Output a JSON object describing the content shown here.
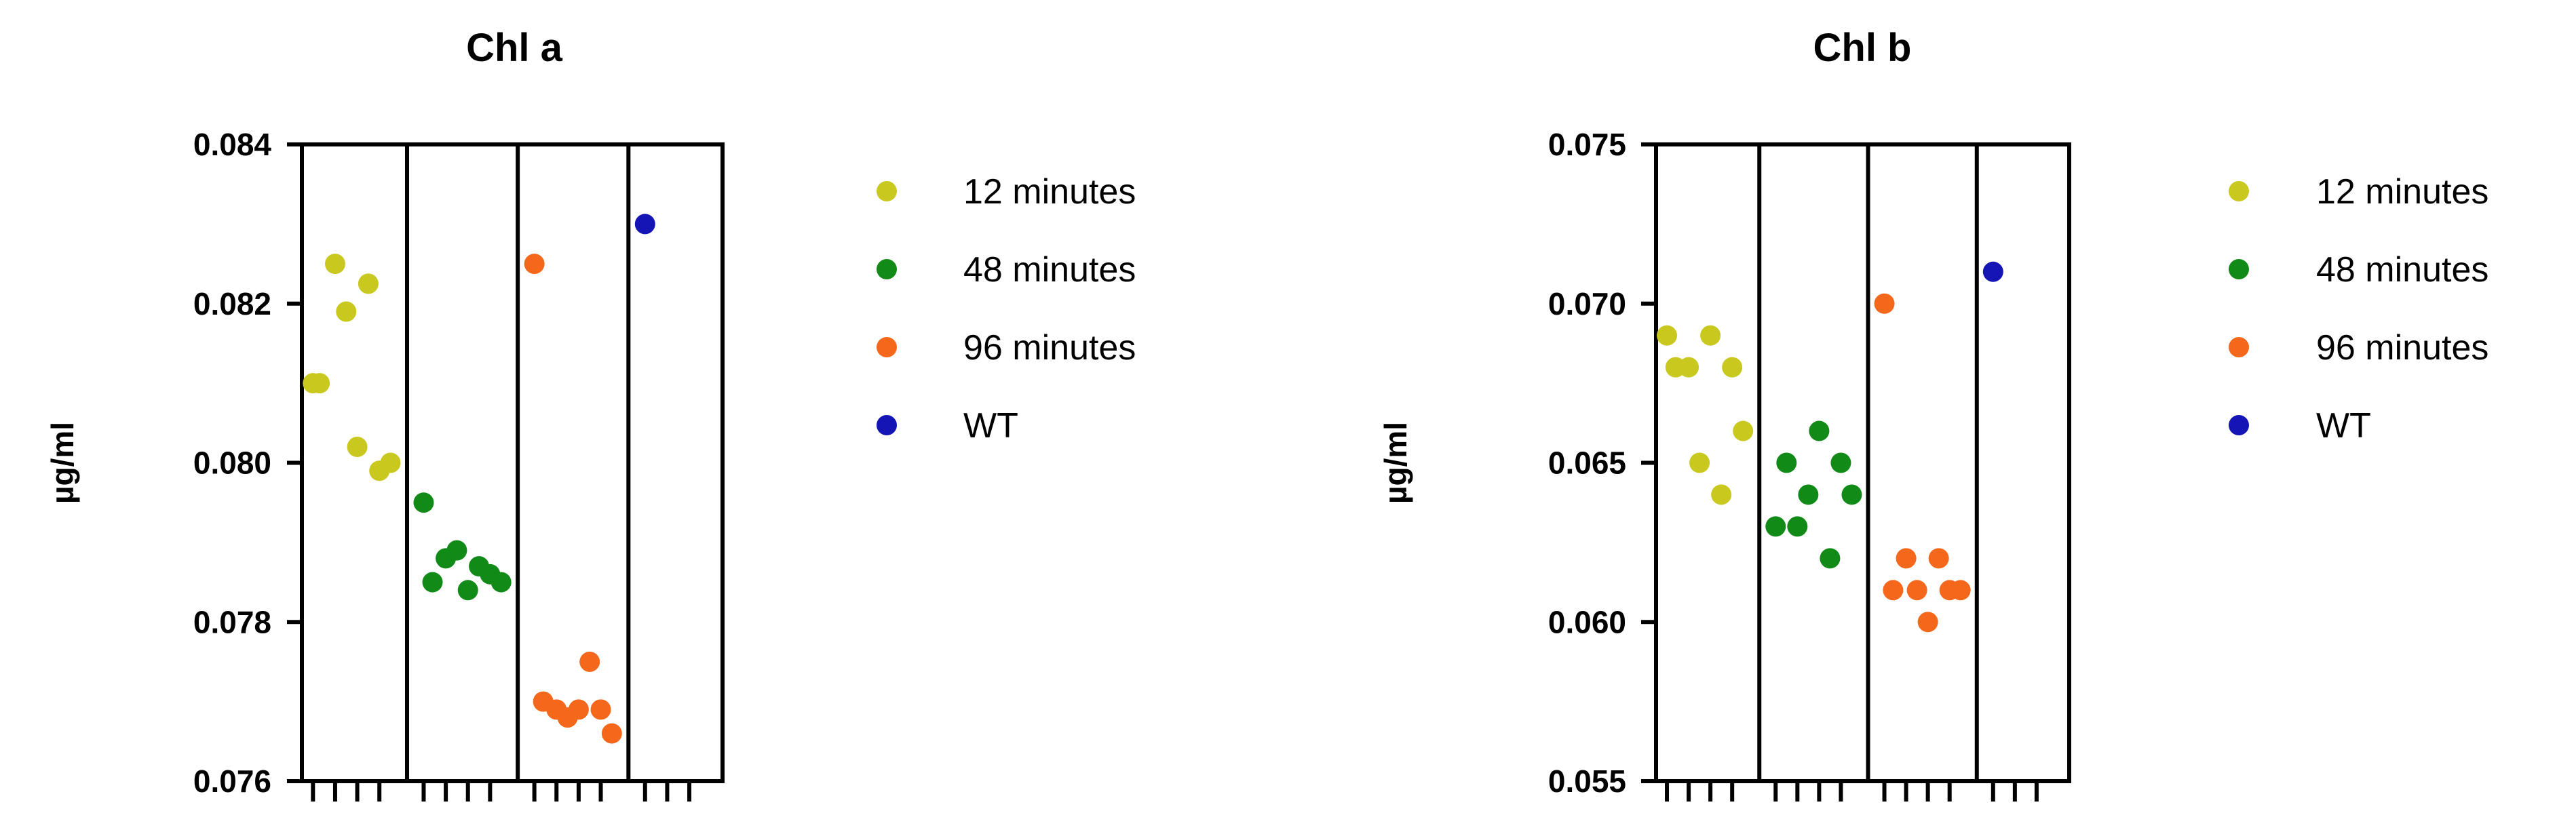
{
  "chart_data": [
    {
      "type": "scatter",
      "title": "Chl a",
      "ylabel": "µg/ml",
      "ylim": [
        0.076,
        0.084
      ],
      "yticks": [
        0.076,
        0.078,
        0.08,
        0.082,
        0.084
      ],
      "ytick_labels": [
        "0.076",
        "0.078",
        "0.080",
        "0.082",
        "0.084"
      ],
      "grid": false,
      "legend_position": "right",
      "series": [
        {
          "name": "12 minutes",
          "color": "#c8c81e",
          "x": [
            1,
            1.3,
            2,
            2.5,
            3,
            3.5,
            4,
            4.5
          ],
          "y": [
            0.081,
            0.081,
            0.0825,
            0.0819,
            0.0802,
            0.08225,
            0.0799,
            0.08
          ]
        },
        {
          "name": "48 minutes",
          "color": "#118a18",
          "x": [
            6,
            6.4,
            7,
            7.5,
            8,
            8.5,
            9,
            9.5
          ],
          "y": [
            0.0795,
            0.0785,
            0.0788,
            0.0789,
            0.0784,
            0.0787,
            0.0786,
            0.0785
          ]
        },
        {
          "name": "96 minutes",
          "color": "#f5681b",
          "x": [
            11,
            11.4,
            12,
            12.5,
            13,
            13.5,
            14,
            14.5
          ],
          "y": [
            0.0825,
            0.077,
            0.0769,
            0.0768,
            0.0769,
            0.0775,
            0.0769,
            0.0766
          ]
        },
        {
          "name": "WT",
          "color": "#1515b5",
          "x": [
            16
          ],
          "y": [
            0.083
          ]
        }
      ]
    },
    {
      "type": "scatter",
      "title": "Chl b",
      "ylabel": "µg/ml",
      "ylim": [
        0.055,
        0.075
      ],
      "yticks": [
        0.055,
        0.06,
        0.065,
        0.07,
        0.075
      ],
      "ytick_labels": [
        "0.055",
        "0.060",
        "0.065",
        "0.070",
        "0.075"
      ],
      "grid": false,
      "legend_position": "right",
      "series": [
        {
          "name": "12 minutes",
          "color": "#c8c81e",
          "x": [
            1,
            1.4,
            2,
            2.5,
            3,
            3.5,
            4,
            4.5
          ],
          "y": [
            0.069,
            0.068,
            0.068,
            0.065,
            0.069,
            0.064,
            0.068,
            0.066
          ]
        },
        {
          "name": "48 minutes",
          "color": "#118a18",
          "x": [
            6,
            6.5,
            7,
            7.5,
            8,
            8.5,
            9,
            9.5
          ],
          "y": [
            0.063,
            0.065,
            0.063,
            0.064,
            0.066,
            0.062,
            0.065,
            0.064
          ]
        },
        {
          "name": "96 minutes",
          "color": "#f5681b",
          "x": [
            11,
            11.4,
            12,
            12.5,
            13,
            13.5,
            14,
            14.5
          ],
          "y": [
            0.07,
            0.061,
            0.062,
            0.061,
            0.06,
            0.062,
            0.061,
            0.061
          ]
        },
        {
          "name": "WT",
          "color": "#1515b5",
          "x": [
            16
          ],
          "y": [
            0.071
          ]
        }
      ]
    }
  ]
}
